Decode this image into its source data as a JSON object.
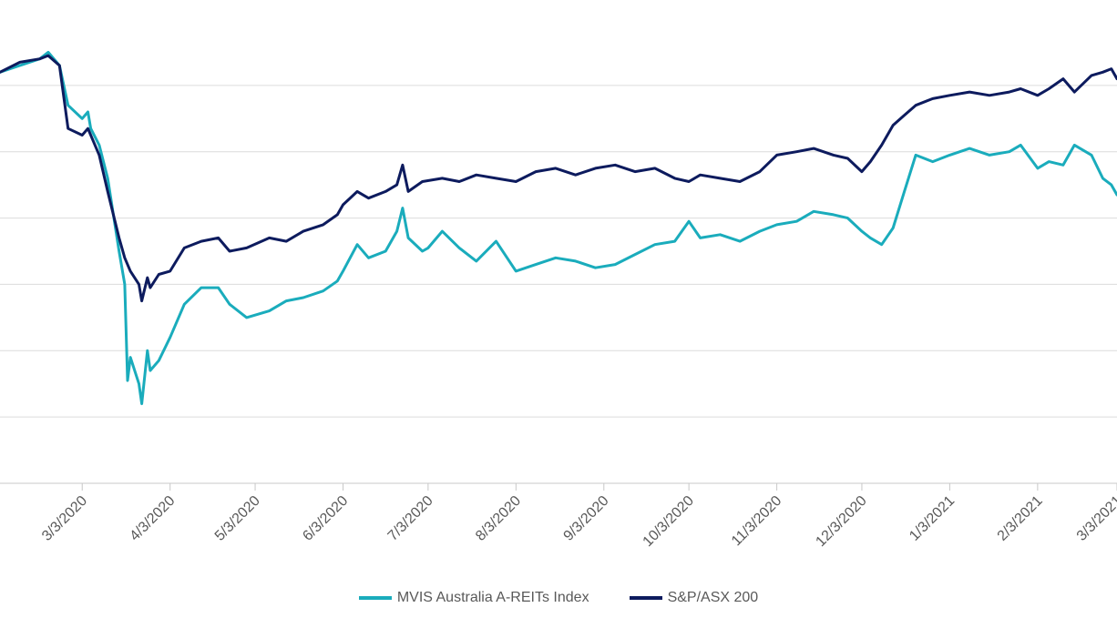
{
  "chart_data": {
    "type": "line",
    "title": "",
    "xlabel": "",
    "ylabel": "",
    "x_ticks": [
      "3/3/2020",
      "4/3/2020",
      "5/3/2020",
      "6/3/2020",
      "7/3/2020",
      "8/3/2020",
      "9/3/2020",
      "10/3/2020",
      "11/3/2020",
      "12/3/2020",
      "1/3/2021",
      "2/3/2021",
      "3/3/2021"
    ],
    "x_range": [
      "2020-02-03",
      "2021-03-03"
    ],
    "y_range": [
      0,
      7
    ],
    "y_gridlines": [
      0,
      1,
      2,
      3,
      4,
      5,
      6
    ],
    "grid": true,
    "legend_position": "bottom",
    "series": [
      {
        "name": "MVIS Australia A-REITs Index",
        "color": "#1aacbc",
        "points": [
          [
            "2020-02-03",
            6.2
          ],
          [
            "2020-02-10",
            6.3
          ],
          [
            "2020-02-17",
            6.4
          ],
          [
            "2020-02-20",
            6.5
          ],
          [
            "2020-02-24",
            6.3
          ],
          [
            "2020-02-27",
            5.7
          ],
          [
            "2020-03-03",
            5.5
          ],
          [
            "2020-03-05",
            5.6
          ],
          [
            "2020-03-06",
            5.35
          ],
          [
            "2020-03-09",
            5.1
          ],
          [
            "2020-03-12",
            4.6
          ],
          [
            "2020-03-16",
            3.5
          ],
          [
            "2020-03-18",
            3.0
          ],
          [
            "2020-03-19",
            1.55
          ],
          [
            "2020-03-20",
            1.9
          ],
          [
            "2020-03-23",
            1.5
          ],
          [
            "2020-03-24",
            1.2
          ],
          [
            "2020-03-26",
            2.0
          ],
          [
            "2020-03-27",
            1.7
          ],
          [
            "2020-03-30",
            1.85
          ],
          [
            "2020-04-03",
            2.2
          ],
          [
            "2020-04-08",
            2.7
          ],
          [
            "2020-04-14",
            2.95
          ],
          [
            "2020-04-20",
            2.95
          ],
          [
            "2020-04-24",
            2.7
          ],
          [
            "2020-04-30",
            2.5
          ],
          [
            "2020-05-08",
            2.6
          ],
          [
            "2020-05-14",
            2.75
          ],
          [
            "2020-05-20",
            2.8
          ],
          [
            "2020-05-27",
            2.9
          ],
          [
            "2020-06-01",
            3.05
          ],
          [
            "2020-06-03",
            3.2
          ],
          [
            "2020-06-08",
            3.6
          ],
          [
            "2020-06-12",
            3.4
          ],
          [
            "2020-06-18",
            3.5
          ],
          [
            "2020-06-22",
            3.8
          ],
          [
            "2020-06-24",
            4.15
          ],
          [
            "2020-06-26",
            3.7
          ],
          [
            "2020-07-01",
            3.5
          ],
          [
            "2020-07-03",
            3.55
          ],
          [
            "2020-07-08",
            3.8
          ],
          [
            "2020-07-14",
            3.55
          ],
          [
            "2020-07-20",
            3.35
          ],
          [
            "2020-07-27",
            3.65
          ],
          [
            "2020-08-03",
            3.2
          ],
          [
            "2020-08-10",
            3.3
          ],
          [
            "2020-08-17",
            3.4
          ],
          [
            "2020-08-24",
            3.35
          ],
          [
            "2020-08-31",
            3.25
          ],
          [
            "2020-09-07",
            3.3
          ],
          [
            "2020-09-14",
            3.45
          ],
          [
            "2020-09-21",
            3.6
          ],
          [
            "2020-09-28",
            3.65
          ],
          [
            "2020-10-03",
            3.95
          ],
          [
            "2020-10-07",
            3.7
          ],
          [
            "2020-10-14",
            3.75
          ],
          [
            "2020-10-21",
            3.65
          ],
          [
            "2020-10-28",
            3.8
          ],
          [
            "2020-11-03",
            3.9
          ],
          [
            "2020-11-10",
            3.95
          ],
          [
            "2020-11-16",
            4.1
          ],
          [
            "2020-11-23",
            4.05
          ],
          [
            "2020-11-28",
            4.0
          ],
          [
            "2020-12-03",
            3.8
          ],
          [
            "2020-12-06",
            3.7
          ],
          [
            "2020-12-10",
            3.6
          ],
          [
            "2020-12-14",
            3.85
          ],
          [
            "2020-12-18",
            4.4
          ],
          [
            "2020-12-22",
            4.95
          ],
          [
            "2020-12-28",
            4.85
          ],
          [
            "2021-01-03",
            4.95
          ],
          [
            "2021-01-10",
            5.05
          ],
          [
            "2021-01-17",
            4.95
          ],
          [
            "2021-01-24",
            5.0
          ],
          [
            "2021-01-28",
            5.1
          ],
          [
            "2021-02-03",
            4.75
          ],
          [
            "2021-02-07",
            4.85
          ],
          [
            "2021-02-12",
            4.8
          ],
          [
            "2021-02-16",
            5.1
          ],
          [
            "2021-02-22",
            4.95
          ],
          [
            "2021-02-26",
            4.6
          ],
          [
            "2021-03-01",
            4.5
          ],
          [
            "2021-03-03",
            4.35
          ]
        ]
      },
      {
        "name": "S&P/ASX 200",
        "color": "#0d1b5e",
        "points": [
          [
            "2020-02-03",
            6.2
          ],
          [
            "2020-02-10",
            6.35
          ],
          [
            "2020-02-17",
            6.4
          ],
          [
            "2020-02-20",
            6.45
          ],
          [
            "2020-02-24",
            6.3
          ],
          [
            "2020-02-27",
            5.35
          ],
          [
            "2020-03-03",
            5.25
          ],
          [
            "2020-03-05",
            5.35
          ],
          [
            "2020-03-09",
            4.95
          ],
          [
            "2020-03-12",
            4.4
          ],
          [
            "2020-03-16",
            3.7
          ],
          [
            "2020-03-18",
            3.4
          ],
          [
            "2020-03-20",
            3.2
          ],
          [
            "2020-03-23",
            3.0
          ],
          [
            "2020-03-24",
            2.75
          ],
          [
            "2020-03-26",
            3.1
          ],
          [
            "2020-03-27",
            2.95
          ],
          [
            "2020-03-30",
            3.15
          ],
          [
            "2020-04-03",
            3.2
          ],
          [
            "2020-04-08",
            3.55
          ],
          [
            "2020-04-14",
            3.65
          ],
          [
            "2020-04-20",
            3.7
          ],
          [
            "2020-04-24",
            3.5
          ],
          [
            "2020-04-30",
            3.55
          ],
          [
            "2020-05-08",
            3.7
          ],
          [
            "2020-05-14",
            3.65
          ],
          [
            "2020-05-20",
            3.8
          ],
          [
            "2020-05-27",
            3.9
          ],
          [
            "2020-06-01",
            4.05
          ],
          [
            "2020-06-03",
            4.2
          ],
          [
            "2020-06-08",
            4.4
          ],
          [
            "2020-06-12",
            4.3
          ],
          [
            "2020-06-18",
            4.4
          ],
          [
            "2020-06-22",
            4.5
          ],
          [
            "2020-06-24",
            4.8
          ],
          [
            "2020-06-26",
            4.4
          ],
          [
            "2020-07-01",
            4.55
          ],
          [
            "2020-07-08",
            4.6
          ],
          [
            "2020-07-14",
            4.55
          ],
          [
            "2020-07-20",
            4.65
          ],
          [
            "2020-07-27",
            4.6
          ],
          [
            "2020-08-03",
            4.55
          ],
          [
            "2020-08-10",
            4.7
          ],
          [
            "2020-08-17",
            4.75
          ],
          [
            "2020-08-24",
            4.65
          ],
          [
            "2020-08-31",
            4.75
          ],
          [
            "2020-09-07",
            4.8
          ],
          [
            "2020-09-14",
            4.7
          ],
          [
            "2020-09-21",
            4.75
          ],
          [
            "2020-09-28",
            4.6
          ],
          [
            "2020-10-03",
            4.55
          ],
          [
            "2020-10-07",
            4.65
          ],
          [
            "2020-10-14",
            4.6
          ],
          [
            "2020-10-21",
            4.55
          ],
          [
            "2020-10-28",
            4.7
          ],
          [
            "2020-11-03",
            4.95
          ],
          [
            "2020-11-10",
            5.0
          ],
          [
            "2020-11-16",
            5.05
          ],
          [
            "2020-11-23",
            4.95
          ],
          [
            "2020-11-28",
            4.9
          ],
          [
            "2020-12-03",
            4.7
          ],
          [
            "2020-12-06",
            4.85
          ],
          [
            "2020-12-10",
            5.1
          ],
          [
            "2020-12-14",
            5.4
          ],
          [
            "2020-12-18",
            5.55
          ],
          [
            "2020-12-22",
            5.7
          ],
          [
            "2020-12-28",
            5.8
          ],
          [
            "2021-01-03",
            5.85
          ],
          [
            "2021-01-10",
            5.9
          ],
          [
            "2021-01-17",
            5.85
          ],
          [
            "2021-01-24",
            5.9
          ],
          [
            "2021-01-28",
            5.95
          ],
          [
            "2021-02-03",
            5.85
          ],
          [
            "2021-02-07",
            5.95
          ],
          [
            "2021-02-12",
            6.1
          ],
          [
            "2021-02-16",
            5.9
          ],
          [
            "2021-02-22",
            6.15
          ],
          [
            "2021-02-26",
            6.2
          ],
          [
            "2021-03-01",
            6.25
          ],
          [
            "2021-03-03",
            6.1
          ]
        ]
      }
    ]
  }
}
